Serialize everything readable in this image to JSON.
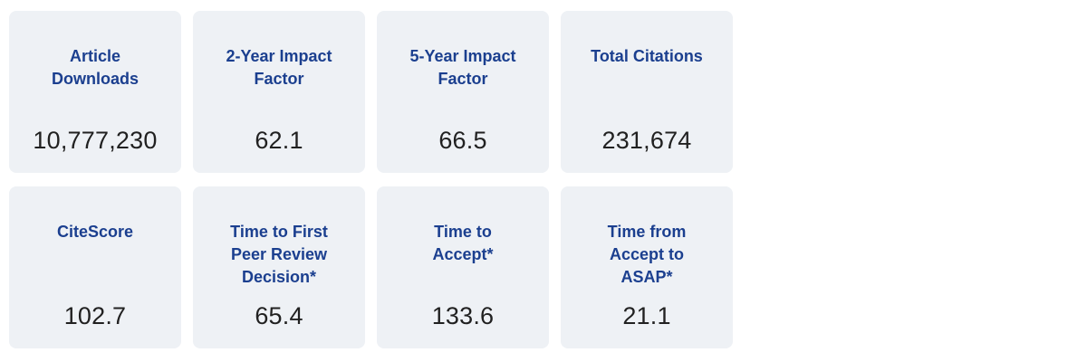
{
  "colors": {
    "accent": "#1b3f8f",
    "card_bg": "#eef1f5",
    "value_color": "#212121",
    "page_bg": "#ffffff"
  },
  "stats": {
    "cards": [
      {
        "label": "Article Downloads",
        "value": "10,777,230"
      },
      {
        "label": "2-Year Impact Factor",
        "value": "62.1"
      },
      {
        "label": "5-Year Impact Factor",
        "value": "66.5"
      },
      {
        "label": "Total Citations",
        "value": "231,674"
      },
      {
        "label": "CiteScore",
        "value": "102.7"
      },
      {
        "label": "Time to First Peer Review Decision*",
        "value": "65.4"
      },
      {
        "label": "Time to Accept*",
        "value": "133.6"
      },
      {
        "label": "Time from Accept to ASAP*",
        "value": "21.1"
      }
    ]
  }
}
